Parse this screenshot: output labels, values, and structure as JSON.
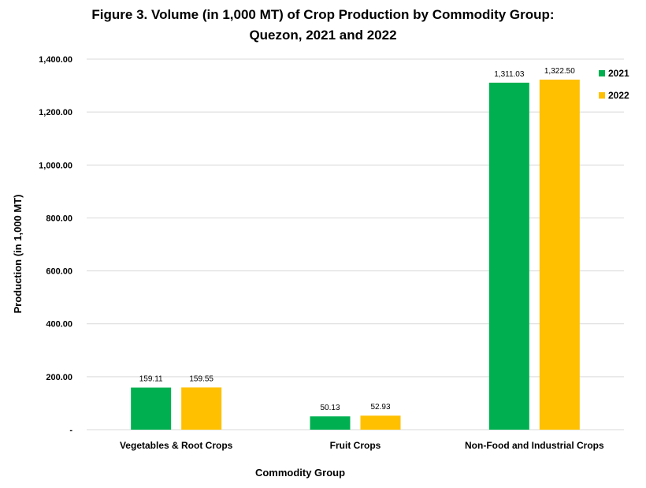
{
  "chart_data": {
    "type": "bar",
    "title_line1": "Figure 3. Volume (in 1,000 MT) of Crop Production by Commodity Group:",
    "title_line2": "Quezon, 2021 and 2022",
    "xlabel": "Commodity Group",
    "ylabel": "Production (in 1,000 MT)",
    "ylim": [
      0,
      1400
    ],
    "yticks": [
      0,
      200,
      400,
      600,
      800,
      1000,
      1200,
      1400
    ],
    "ytick_labels": [
      "-",
      "200.00",
      "400.00",
      "600.00",
      "800.00",
      "1,000.00",
      "1,200.00",
      "1,400.00"
    ],
    "categories": [
      "Vegetables & Root Crops",
      "Fruit Crops",
      "Non-Food and Industrial Crops"
    ],
    "series": [
      {
        "name": "2021",
        "color": "#00b050",
        "values": [
          159.11,
          50.13,
          1311.03
        ],
        "labels": [
          "159.11",
          "50.13",
          "1,311.03"
        ]
      },
      {
        "name": "2022",
        "color": "#ffc000",
        "values": [
          159.55,
          52.93,
          1322.5
        ],
        "labels": [
          "159.55",
          "52.93",
          "1,322.50"
        ]
      }
    ],
    "grid": true,
    "legend_position": "top-right"
  }
}
